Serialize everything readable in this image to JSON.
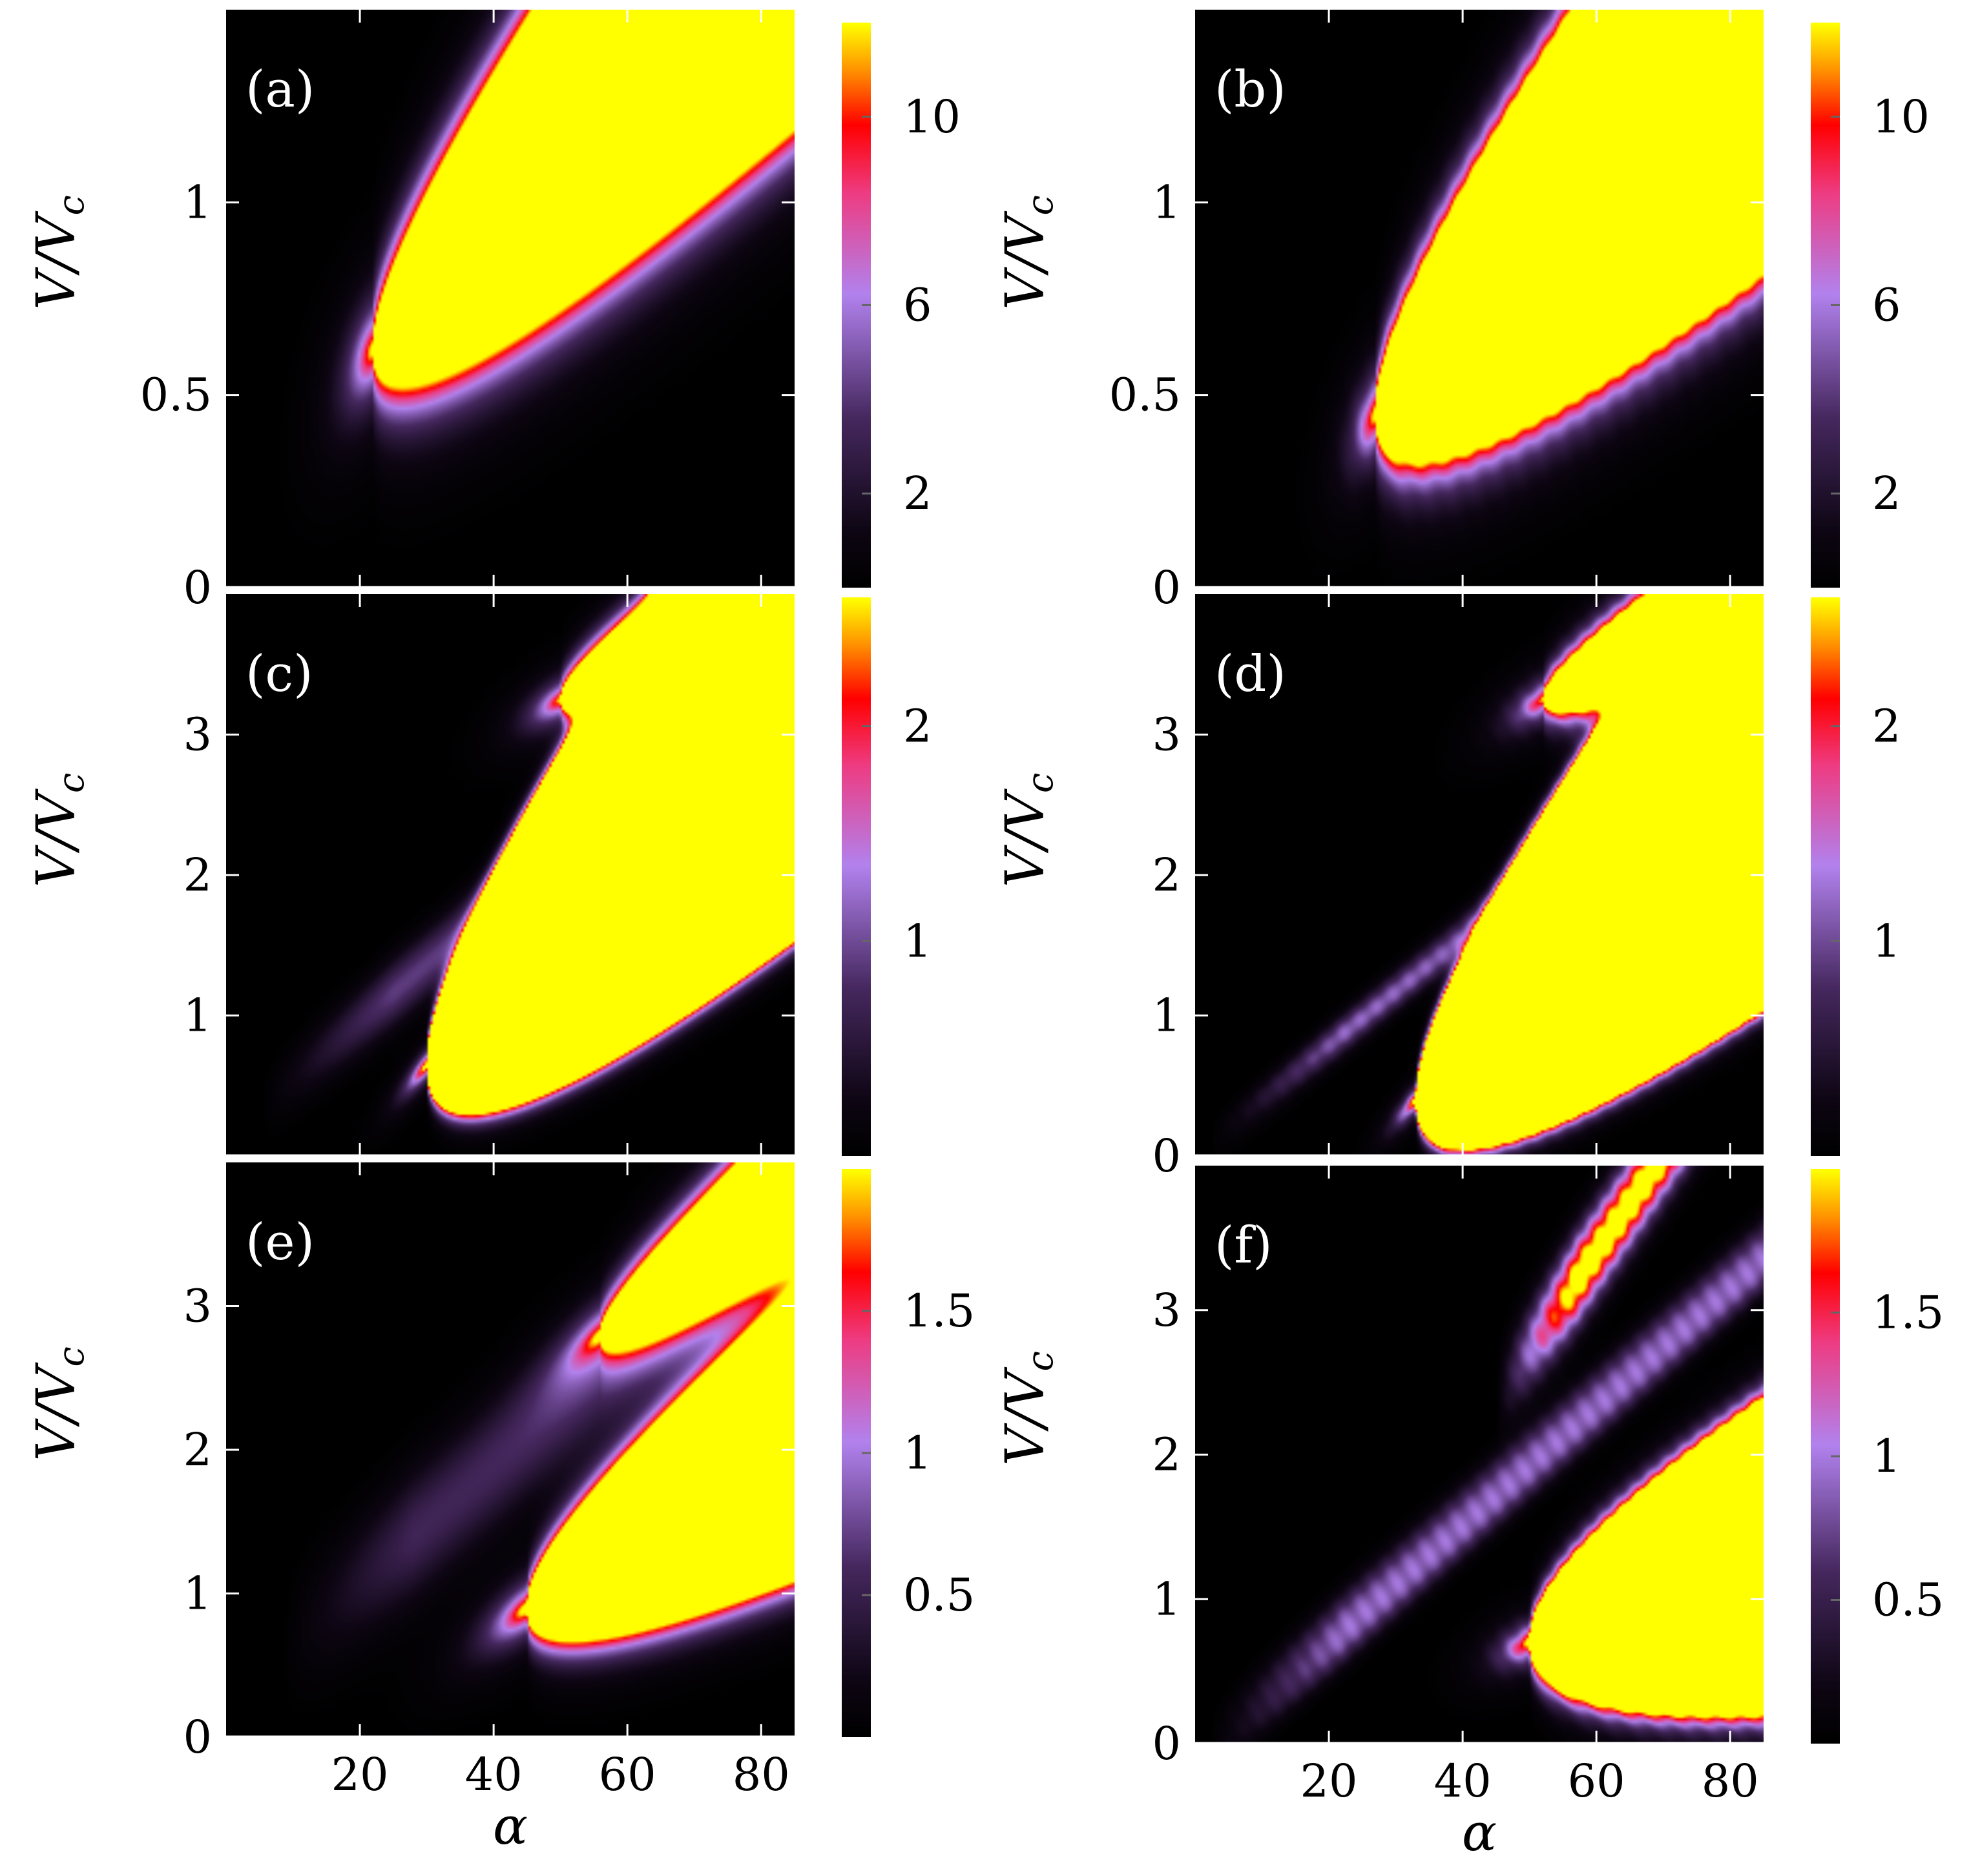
{
  "chart_data": [
    {
      "id": "a",
      "type": "heatmap",
      "panel_label": "(a)",
      "xlabel": "",
      "ylabel": "V/V",
      "ylabel_sub": "c",
      "xlim": [
        0,
        85
      ],
      "ylim": [
        0,
        1.5
      ],
      "xticks": [],
      "yticks": [
        0,
        0.5,
        1
      ],
      "ytick_labels": [
        "0",
        "0.5",
        "1"
      ],
      "colorbar": {
        "range": [
          0,
          12
        ],
        "ticks": [
          2,
          6,
          10
        ],
        "tick_labels": [
          "2",
          "6",
          "10"
        ]
      },
      "features": [
        {
          "kind": "peak",
          "vertex_alpha": 22,
          "vertex_v": 0.62,
          "slope": 0.0196,
          "width_v": 0.45,
          "height": 14,
          "spread": 0.085,
          "sharp": 0
        }
      ],
      "noise": 0
    },
    {
      "id": "b",
      "type": "heatmap",
      "panel_label": "(b)",
      "xlabel": "",
      "ylabel": "V/V",
      "ylabel_sub": "c",
      "xlim": [
        0,
        85
      ],
      "ylim": [
        0,
        1.5
      ],
      "xticks": [],
      "yticks": [
        0,
        0.5,
        1
      ],
      "ytick_labels": [
        "0",
        "0.5",
        "1"
      ],
      "colorbar": {
        "range": [
          0,
          12
        ],
        "ticks": [
          2,
          6,
          10
        ],
        "tick_labels": [
          "2",
          "6",
          "10"
        ]
      },
      "features": [
        {
          "kind": "peak",
          "vertex_alpha": 27,
          "vertex_v": 0.45,
          "slope": 0.0185,
          "width_v": 0.5,
          "height": 15,
          "spread": 0.07,
          "sharp": 0
        }
      ],
      "noise": 0.05
    },
    {
      "id": "c",
      "type": "heatmap",
      "panel_label": "(c)",
      "xlabel": "",
      "ylabel": "V/V",
      "ylabel_sub": "c",
      "xlim": [
        0,
        85
      ],
      "ylim": [
        0,
        4
      ],
      "xticks": [],
      "yticks": [
        1,
        2,
        3
      ],
      "ytick_labels": [
        "1",
        "2",
        "3"
      ],
      "colorbar": {
        "range": [
          0,
          2.6
        ],
        "ticks": [
          1,
          2
        ],
        "tick_labels": [
          "1",
          "2"
        ]
      },
      "features": [
        {
          "kind": "peak",
          "vertex_alpha": 30,
          "vertex_v": 0.65,
          "slope": 0.052,
          "width_v": 1.45,
          "height": 3.4,
          "spread": 0.065,
          "sharp": 0
        },
        {
          "kind": "peak",
          "vertex_alpha": 50,
          "vertex_v": 3.25,
          "slope": 0.025,
          "width_v": 0.55,
          "height": 2.8,
          "spread": 0.1,
          "sharp": 0
        },
        {
          "kind": "ridge",
          "a0": 5,
          "v0": 0.35,
          "slope": 0.0405,
          "width_v": 0.16,
          "height": 0.9
        }
      ],
      "noise": 0
    },
    {
      "id": "d",
      "type": "heatmap",
      "panel_label": "(d)",
      "xlabel": "",
      "ylabel": "V/V",
      "ylabel_sub": "c",
      "xlim": [
        0,
        85
      ],
      "ylim": [
        0,
        4
      ],
      "xticks": [],
      "yticks": [
        0,
        1,
        2,
        3
      ],
      "ytick_labels": [
        "0",
        "1",
        "2",
        "3"
      ],
      "colorbar": {
        "range": [
          0,
          2.6
        ],
        "ticks": [
          1,
          2
        ],
        "tick_labels": [
          "1",
          "2"
        ]
      },
      "features": [
        {
          "kind": "peak",
          "vertex_alpha": 33,
          "vertex_v": 0.4,
          "slope": 0.048,
          "width_v": 1.4,
          "height": 3.3,
          "spread": 0.06,
          "sharp": 0
        },
        {
          "kind": "peak",
          "vertex_alpha": 52,
          "vertex_v": 3.25,
          "slope": 0.025,
          "width_v": 0.5,
          "height": 2.8,
          "spread": 0.1,
          "sharp": 0
        },
        {
          "kind": "ridge",
          "a0": 2,
          "v0": 0.05,
          "slope": 0.0405,
          "width_v": 0.1,
          "height": 0.65
        },
        {
          "kind": "ridge",
          "a0": 2,
          "v0": 0.15,
          "slope": 0.036,
          "width_v": 0.08,
          "height": 0.5
        }
      ],
      "noise": 0.06
    },
    {
      "id": "e",
      "type": "heatmap",
      "panel_label": "(e)",
      "xlabel": "α",
      "ylabel": "V/V",
      "ylabel_sub": "c",
      "xlim": [
        0,
        85
      ],
      "ylim": [
        0,
        4
      ],
      "xticks": [
        20,
        40,
        60,
        80
      ],
      "xtick_labels": [
        "20",
        "40",
        "60",
        "80"
      ],
      "yticks": [
        0,
        1,
        2,
        3
      ],
      "ytick_labels": [
        "0",
        "1",
        "2",
        "3"
      ],
      "colorbar": {
        "range": [
          0,
          2.0
        ],
        "ticks": [
          0.5,
          1,
          1.5
        ],
        "tick_labels": [
          "0.5",
          "1",
          "1.5"
        ]
      },
      "features": [
        {
          "kind": "peak",
          "vertex_alpha": 45,
          "vertex_v": 0.9,
          "slope": 0.03,
          "width_v": 0.85,
          "height": 2.6,
          "spread": 0.12,
          "sharp": 0
        },
        {
          "kind": "peak",
          "vertex_alpha": 56,
          "vertex_v": 2.8,
          "slope": 0.036,
          "width_v": 0.55,
          "height": 2.1,
          "spread": 0.13,
          "sharp": 0
        },
        {
          "kind": "ridge",
          "a0": 8,
          "v0": 0.6,
          "slope": 0.04,
          "width_v": 0.3,
          "height": 0.55
        }
      ],
      "noise": 0
    },
    {
      "id": "f",
      "type": "heatmap",
      "panel_label": "(f)",
      "xlabel": "α",
      "ylabel": "V/V",
      "ylabel_sub": "c",
      "xlim": [
        0,
        85
      ],
      "ylim": [
        0,
        4
      ],
      "xticks": [
        20,
        40,
        60,
        80
      ],
      "xtick_labels": [
        "20",
        "40",
        "60",
        "80"
      ],
      "yticks": [
        0,
        1,
        2,
        3
      ],
      "ytick_labels": [
        "0",
        "1",
        "2",
        "3"
      ],
      "colorbar": {
        "range": [
          0,
          2.0
        ],
        "ticks": [
          0.5,
          1,
          1.5
        ],
        "tick_labels": [
          "0.5",
          "1",
          "1.5"
        ]
      },
      "features": [
        {
          "kind": "peak",
          "vertex_alpha": 50,
          "vertex_v": 0.7,
          "slope": 0.017,
          "width_v": 1.0,
          "height": 2.6,
          "spread": 0.09,
          "sharp": 0
        },
        {
          "kind": "sharp_ridge",
          "a0": 45,
          "v0": 2.4,
          "slope": 0.067,
          "width_v": 0.2,
          "height": 2.3,
          "a_start": 45
        },
        {
          "kind": "ridge",
          "a0": 2,
          "v0": 0.03,
          "slope": 0.041,
          "width_v": 0.13,
          "height": 0.75
        },
        {
          "kind": "ridge",
          "a0": 2,
          "v0": -0.15,
          "slope": 0.041,
          "width_v": 0.1,
          "height": 0.5
        }
      ],
      "noise": 0.08
    }
  ]
}
